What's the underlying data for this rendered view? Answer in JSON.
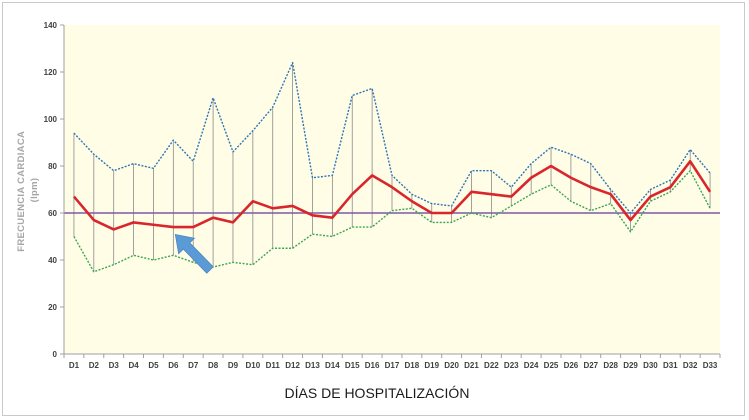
{
  "chart_data": {
    "type": "line",
    "title": "",
    "xlabel": "DÍAS DE HOSPITALIZACIÓN",
    "ylabel": "FRECUENCIA CARDIACA (lpm)",
    "ylabel_line1": "FRECUENCIA CARDIACA",
    "ylabel_line2": "(lpm)",
    "ylim": [
      0,
      140
    ],
    "yticks": [
      0,
      20,
      40,
      60,
      80,
      100,
      120,
      140
    ],
    "grid": false,
    "legend": "none",
    "reference_line": {
      "y": 60,
      "color": "#7b5aa6"
    },
    "categories": [
      "D1",
      "D2",
      "D3",
      "D4",
      "D5",
      "D6",
      "D7",
      "D8",
      "D9",
      "D10",
      "D11",
      "D12",
      "D13",
      "D14",
      "D15",
      "D16",
      "D17",
      "D18",
      "D19",
      "D20",
      "D21",
      "D22",
      "D23",
      "D24",
      "D25",
      "D26",
      "D27",
      "D28",
      "D29",
      "D30",
      "D31",
      "D32",
      "D33"
    ],
    "series": [
      {
        "key": "max",
        "color": "#2e75b6",
        "style": "dotted",
        "values": [
          94,
          85,
          78,
          81,
          79,
          91,
          82,
          109,
          86,
          95,
          105,
          124,
          75,
          76,
          110,
          113,
          76,
          68,
          64,
          63,
          78,
          78,
          71,
          81,
          88,
          85,
          81,
          70,
          60,
          70,
          74,
          87,
          77
        ]
      },
      {
        "key": "mean",
        "color": "#d9262c",
        "style": "solid",
        "values": [
          67,
          57,
          53,
          56,
          55,
          54,
          54,
          58,
          56,
          65,
          62,
          63,
          59,
          58,
          68,
          76,
          71,
          65,
          60,
          60,
          69,
          68,
          67,
          75,
          80,
          75,
          71,
          68,
          57,
          67,
          71,
          82,
          69
        ]
      },
      {
        "key": "min",
        "color": "#3aa655",
        "style": "dotted",
        "values": [
          50,
          35,
          38,
          42,
          40,
          42,
          39,
          37,
          39,
          38,
          45,
          45,
          51,
          50,
          54,
          54,
          61,
          62,
          56,
          56,
          60,
          58,
          63,
          68,
          72,
          65,
          61,
          64,
          52,
          65,
          69,
          78,
          62
        ]
      }
    ],
    "annotation": {
      "type": "arrow",
      "color": "#5b9bd5",
      "target": "D6"
    },
    "colors": {
      "plot_background": "#fffde6",
      "range_drop_lines": "#8a8a8a"
    }
  }
}
